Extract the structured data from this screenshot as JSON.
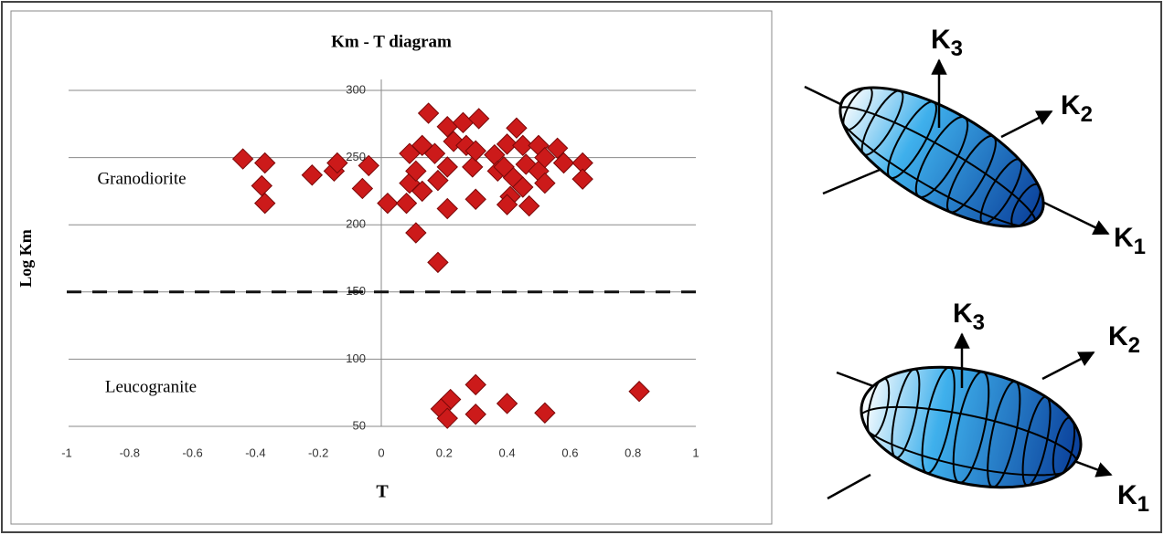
{
  "chart_data": {
    "type": "scatter",
    "title": "Km - T diagram",
    "x_label": "T",
    "y_label": "Log Km",
    "x": [
      -0.44,
      -0.37,
      -0.38,
      -0.37,
      -0.22,
      -0.15,
      -0.14,
      -0.04,
      -0.06,
      0.02,
      0.08,
      0.09,
      0.11,
      0.13,
      0.09,
      0.13,
      0.15,
      0.17,
      0.18,
      0.21,
      0.21,
      0.23,
      0.26,
      0.27,
      0.29,
      0.3,
      0.31,
      0.21,
      0.11,
      0.18,
      0.3,
      0.36,
      0.37,
      0.4,
      0.43,
      0.45,
      0.39,
      0.46,
      0.42,
      0.41,
      0.4,
      0.47,
      0.5,
      0.5,
      0.52,
      0.56,
      0.58,
      0.64,
      0.64,
      0.52,
      0.45,
      0.3,
      0.22,
      0.19,
      0.21,
      0.3,
      0.4,
      0.52,
      0.82
    ],
    "values": [
      249,
      246,
      229,
      216,
      237,
      240,
      246,
      244,
      227,
      216,
      216,
      231,
      240,
      225,
      253,
      259,
      283,
      253,
      233,
      243,
      273,
      262,
      276,
      259,
      243,
      255,
      279,
      212,
      194,
      172,
      219,
      252,
      240,
      260,
      272,
      259,
      243,
      245,
      235,
      221,
      215,
      214,
      259,
      240,
      231,
      257,
      246,
      246,
      234,
      250,
      228,
      81,
      70,
      63,
      56,
      59,
      67,
      60,
      76
    ],
    "color": "#cc1a1a",
    "xlim": [
      -1,
      1
    ],
    "xticks": [
      -1,
      -0.8,
      -0.6,
      -0.4,
      -0.2,
      0,
      0.2,
      0.4,
      0.6,
      0.8,
      1
    ],
    "ylim": [
      50,
      300
    ],
    "yticks": [
      50,
      100,
      150,
      200,
      250,
      300
    ],
    "grid": true,
    "reference_line": {
      "y": 150,
      "style": "dashed"
    },
    "annotations": [
      "Granodiorite",
      "Leucogranite"
    ]
  },
  "diagrams": [
    {
      "labels": [
        {
          "symbol": "K",
          "index": "3"
        },
        {
          "symbol": "K",
          "index": "2"
        },
        {
          "symbol": "K",
          "index": "1"
        }
      ]
    },
    {
      "labels": [
        {
          "symbol": "K",
          "index": "3"
        },
        {
          "symbol": "K",
          "index": "2"
        },
        {
          "symbol": "K",
          "index": "1"
        }
      ]
    }
  ]
}
